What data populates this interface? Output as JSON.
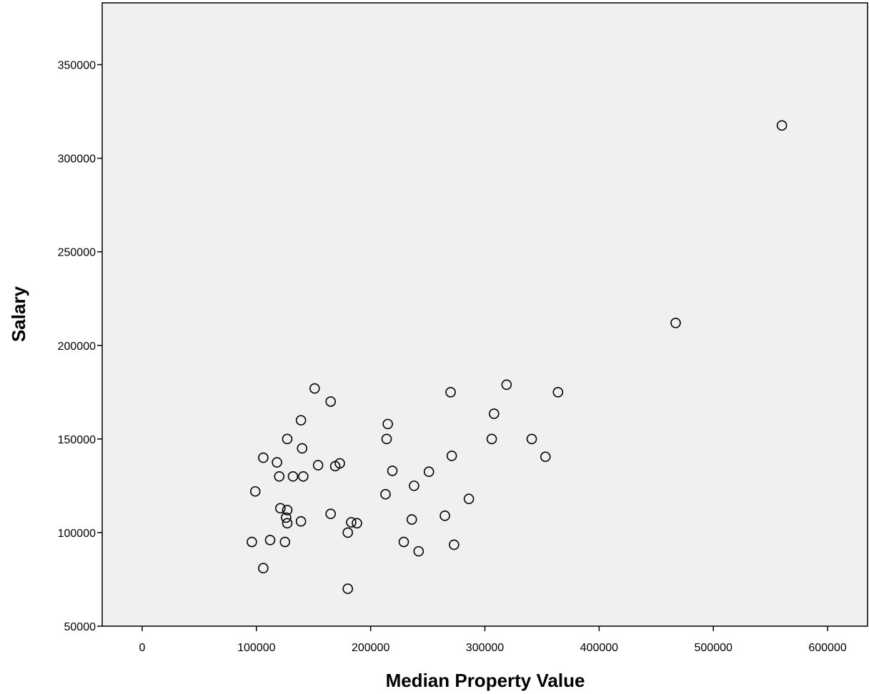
{
  "chart_data": {
    "type": "scatter",
    "title": "",
    "xlabel": "Median Property Value",
    "ylabel": "Salary",
    "xlim": [
      -35000,
      635000
    ],
    "ylim": [
      50000,
      383000
    ],
    "xticks": [
      0,
      100000,
      200000,
      300000,
      400000,
      500000,
      600000
    ],
    "yticks": [
      50000,
      100000,
      150000,
      200000,
      250000,
      300000,
      350000
    ],
    "xtick_labels": [
      "0",
      "100000",
      "200000",
      "300000",
      "400000",
      "500000",
      "600000"
    ],
    "ytick_labels": [
      "50000",
      "100000",
      "150000",
      "200000",
      "250000",
      "300000",
      "350000"
    ],
    "grid": false,
    "plot_background": "#f0f0f0",
    "marker": "open-circle",
    "marker_color": "#000000",
    "points": [
      [
        560000,
        317500
      ],
      [
        467000,
        212000
      ],
      [
        364000,
        175000
      ],
      [
        353000,
        140500
      ],
      [
        341000,
        150000
      ],
      [
        319000,
        179000
      ],
      [
        308000,
        163500
      ],
      [
        306000,
        150000
      ],
      [
        286000,
        118000
      ],
      [
        271000,
        141000
      ],
      [
        270000,
        175000
      ],
      [
        265000,
        109000
      ],
      [
        273000,
        93500
      ],
      [
        251000,
        132500
      ],
      [
        242000,
        90000
      ],
      [
        238000,
        125000
      ],
      [
        236000,
        107000
      ],
      [
        229000,
        95000
      ],
      [
        219000,
        133000
      ],
      [
        215000,
        158000
      ],
      [
        214000,
        150000
      ],
      [
        213000,
        120500
      ],
      [
        188000,
        105000
      ],
      [
        183000,
        105500
      ],
      [
        180000,
        100000
      ],
      [
        180000,
        70000
      ],
      [
        173000,
        137000
      ],
      [
        169000,
        135500
      ],
      [
        165000,
        170000
      ],
      [
        165000,
        110000
      ],
      [
        154000,
        136000
      ],
      [
        151000,
        177000
      ],
      [
        141000,
        130000
      ],
      [
        140000,
        145000
      ],
      [
        139000,
        160000
      ],
      [
        139000,
        106000
      ],
      [
        132000,
        130000
      ],
      [
        127000,
        150000
      ],
      [
        127000,
        112000
      ],
      [
        126000,
        108000
      ],
      [
        127000,
        105000
      ],
      [
        125000,
        95000
      ],
      [
        121000,
        113000
      ],
      [
        120000,
        130000
      ],
      [
        118000,
        137500
      ],
      [
        112000,
        96000
      ],
      [
        106000,
        140000
      ],
      [
        106000,
        81000
      ],
      [
        99000,
        122000
      ],
      [
        96000,
        95000
      ]
    ]
  }
}
